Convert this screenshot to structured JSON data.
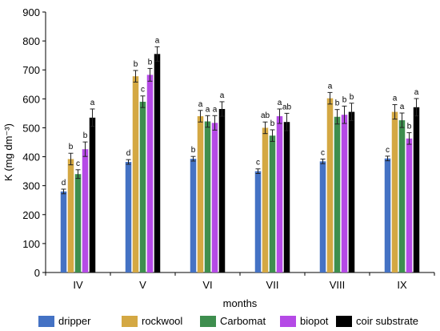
{
  "chart_data": {
    "type": "bar",
    "xlabel": "months",
    "ylabel": "K (mg dm⁻³)",
    "ylim": [
      0,
      900
    ],
    "yticks": [
      0,
      100,
      200,
      300,
      400,
      500,
      600,
      700,
      800,
      900
    ],
    "grid": false,
    "legend_position": "bottom",
    "categories": [
      "IV",
      "V",
      "VI",
      "VII",
      "VIII",
      "IX"
    ],
    "series": [
      {
        "name": "dripper",
        "color": "#4472c4",
        "values": [
          280,
          382,
          393,
          350,
          384,
          394
        ],
        "errors": [
          8,
          8,
          8,
          8,
          8,
          8
        ],
        "labels": [
          "d",
          "d",
          "b",
          "c",
          "c",
          "c"
        ]
      },
      {
        "name": "rockwool",
        "color": "#d4a843",
        "values": [
          392,
          678,
          540,
          500,
          602,
          555
        ],
        "errors": [
          20,
          20,
          20,
          20,
          20,
          25
        ],
        "labels": [
          "b",
          "b",
          "a",
          "ab",
          "a",
          "a"
        ]
      },
      {
        "name": "Carbomat",
        "color": "#3e8e4e",
        "values": [
          340,
          590,
          522,
          473,
          538,
          526
        ],
        "errors": [
          15,
          20,
          20,
          20,
          25,
          25
        ],
        "labels": [
          "c",
          "c",
          "a",
          "b",
          "b",
          "a"
        ]
      },
      {
        "name": "biopot",
        "color": "#b54ae6",
        "values": [
          426,
          683,
          517,
          540,
          545,
          463
        ],
        "errors": [
          25,
          22,
          25,
          25,
          30,
          20
        ],
        "labels": [
          "b",
          "b",
          "a",
          "a",
          "b",
          "b"
        ]
      },
      {
        "name": "coir substrate",
        "color": "#000000",
        "values": [
          535,
          755,
          565,
          520,
          555,
          571
        ],
        "errors": [
          30,
          25,
          25,
          30,
          30,
          30
        ],
        "labels": [
          "a",
          "a",
          "a",
          "ab",
          "b",
          "a"
        ]
      }
    ]
  }
}
